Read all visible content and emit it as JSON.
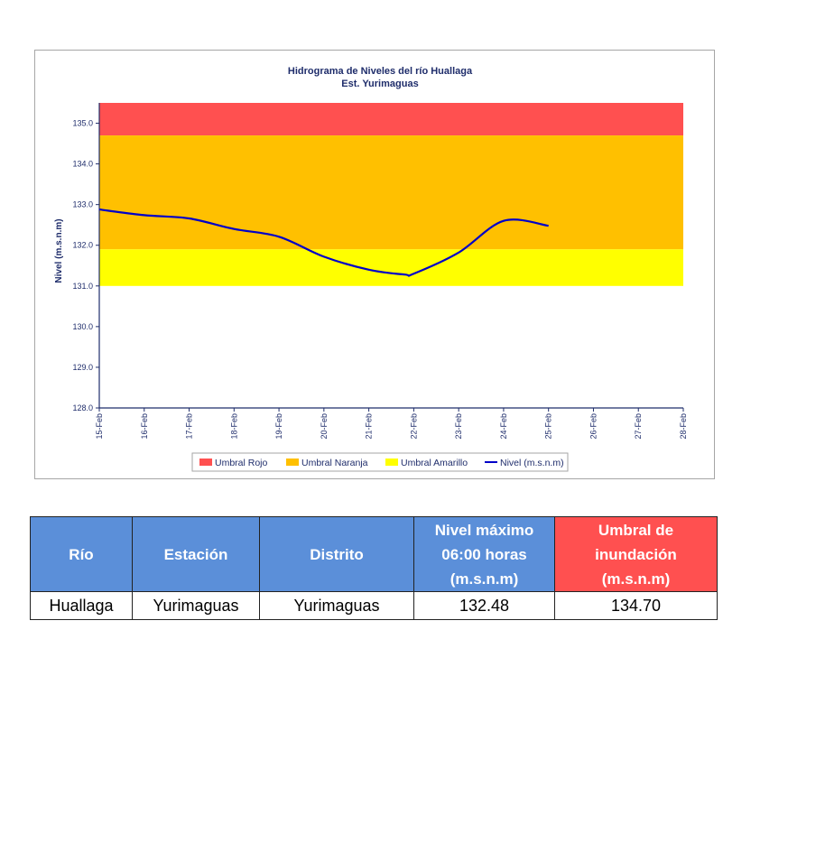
{
  "chart_data": {
    "type": "line",
    "title": "Hidrograma de Niveles del río Huallaga",
    "subtitle": "Est. Yurimaguas",
    "xlabel": "",
    "ylabel": "Nivel (m.s.n.m)",
    "ylim": [
      128.0,
      135.5
    ],
    "yticks": [
      "128.0",
      "129.0",
      "130.0",
      "131.0",
      "132.0",
      "133.0",
      "134.0",
      "135.0"
    ],
    "categories": [
      "15-Feb",
      "16-Feb",
      "17-Feb",
      "18-Feb",
      "19-Feb",
      "20-Feb",
      "21-Feb",
      "22-Feb",
      "23-Feb",
      "24-Feb",
      "25-Feb",
      "26-Feb",
      "27-Feb",
      "28-Feb"
    ],
    "bands": [
      {
        "name": "Umbral Rojo",
        "from": 134.7,
        "to": 135.5,
        "color": "#ff5050"
      },
      {
        "name": "Umbral Naranja",
        "from": 131.9,
        "to": 134.7,
        "color": "#ffc000"
      },
      {
        "name": "Umbral Amarillo",
        "from": 131.0,
        "to": 131.9,
        "color": "#ffff00"
      }
    ],
    "series": [
      {
        "name": "Nivel (m.s.n.m)",
        "color": "#0000c8",
        "x": [
          0,
          1,
          2,
          3,
          4,
          5,
          6,
          6.8,
          7,
          8,
          9,
          10
        ],
        "values": [
          132.88,
          132.74,
          132.66,
          132.4,
          132.21,
          131.72,
          131.4,
          131.28,
          131.3,
          131.82,
          132.6,
          132.48
        ]
      }
    ],
    "legend": [
      "Umbral Rojo",
      "Umbral Naranja",
      "Umbral Amarillo",
      "Nivel (m.s.n.m)"
    ],
    "legend_position": "bottom",
    "grid": false
  },
  "table": {
    "headers": [
      {
        "lines": [
          "Río"
        ]
      },
      {
        "lines": [
          "Estación"
        ]
      },
      {
        "lines": [
          "Distrito"
        ]
      },
      {
        "lines": [
          "Nivel máximo",
          "06:00 horas",
          "(m.s.n.m)"
        ]
      },
      {
        "lines": [
          "Umbral de",
          "inundación",
          "(m.s.n.m)"
        ]
      }
    ],
    "row": [
      "Huallaga",
      "Yurimaguas",
      "Yurimaguas",
      "132.48",
      "134.70"
    ]
  }
}
